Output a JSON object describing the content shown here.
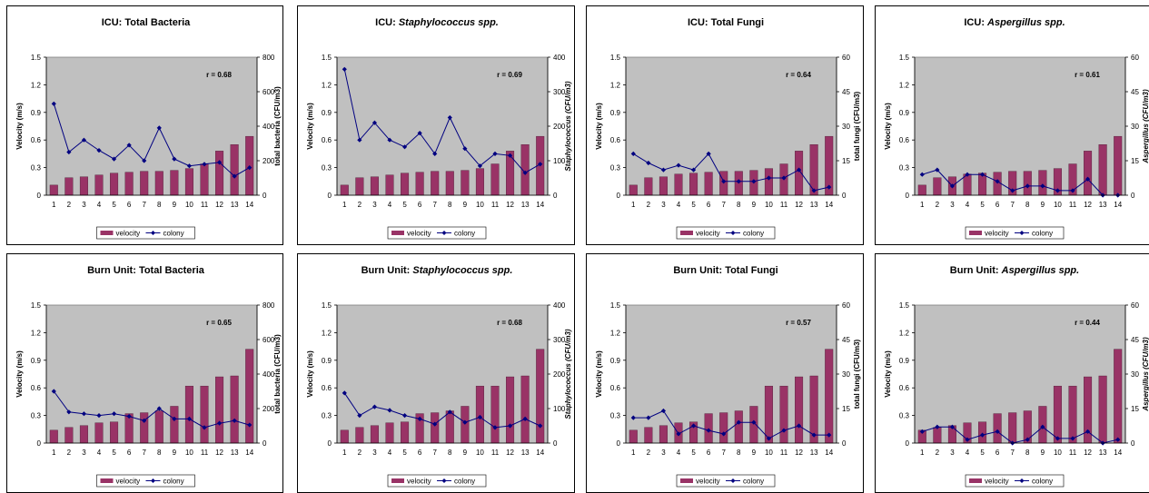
{
  "colors": {
    "plot_bg": "#c0c0c0",
    "bar": "#993366",
    "line": "#000080"
  },
  "legend": {
    "bar_label": "velocity",
    "line_label": "colony"
  },
  "chart_data": [
    {
      "type": "bar+line",
      "title_prefix": "ICU: ",
      "title_main": "Total Bacteria",
      "title_italic": false,
      "r_label": "r = 0.68",
      "ylabel_left": "Velocity (m/s)",
      "ylabel_right": "total bacteria (CFU/m3)",
      "right_label_italic": false,
      "y_left": {
        "ylim": [
          0,
          1.5
        ],
        "ticks": [
          "0",
          "0.3",
          "0.6",
          "0.9",
          "1.2",
          "1.5"
        ]
      },
      "y_right": {
        "ylim": [
          0,
          800
        ],
        "ticks": [
          "0",
          "200",
          "400",
          "600",
          "800"
        ]
      },
      "x": [
        "1",
        "2",
        "3",
        "4",
        "5",
        "6",
        "7",
        "8",
        "9",
        "10",
        "11",
        "12",
        "13",
        "14"
      ],
      "velocity": [
        0.11,
        0.19,
        0.2,
        0.22,
        0.24,
        0.25,
        0.26,
        0.26,
        0.27,
        0.29,
        0.34,
        0.48,
        0.55,
        0.64
      ],
      "colony": [
        530,
        250,
        320,
        260,
        210,
        290,
        200,
        390,
        210,
        170,
        180,
        190,
        110,
        160
      ]
    },
    {
      "type": "bar+line",
      "title_prefix": "ICU: ",
      "title_main": "Staphylococcus spp.",
      "title_italic": true,
      "r_label": "r = 0.69",
      "ylabel_left": "Velocity (m/s)",
      "ylabel_right": "Staphylococcus (CFU/m3)",
      "right_label_italic": true,
      "y_left": {
        "ylim": [
          0,
          1.5
        ],
        "ticks": [
          "0",
          "0.3",
          "0.6",
          "0.9",
          "1.2",
          "1.5"
        ]
      },
      "y_right": {
        "ylim": [
          0,
          400
        ],
        "ticks": [
          "0",
          "100",
          "200",
          "300",
          "400"
        ]
      },
      "x": [
        "1",
        "2",
        "3",
        "4",
        "5",
        "6",
        "7",
        "8",
        "9",
        "10",
        "11",
        "12",
        "13",
        "14"
      ],
      "velocity": [
        0.11,
        0.19,
        0.2,
        0.22,
        0.24,
        0.25,
        0.26,
        0.26,
        0.27,
        0.29,
        0.34,
        0.48,
        0.55,
        0.64
      ],
      "colony": [
        365,
        160,
        210,
        160,
        140,
        180,
        120,
        225,
        135,
        85,
        120,
        115,
        65,
        90
      ]
    },
    {
      "type": "bar+line",
      "title_prefix": "ICU: ",
      "title_main": "Total Fungi",
      "title_italic": false,
      "r_label": "r = 0.64",
      "ylabel_left": "Velocity (m/s)",
      "ylabel_right": "total fungi (CFU/m3)",
      "right_label_italic": false,
      "y_left": {
        "ylim": [
          0,
          1.5
        ],
        "ticks": [
          "0",
          "0.3",
          "0.6",
          "0.9",
          "1.2",
          "1.5"
        ]
      },
      "y_right": {
        "ylim": [
          0,
          60
        ],
        "ticks": [
          "0",
          "15",
          "30",
          "45",
          "60"
        ]
      },
      "x": [
        "1",
        "2",
        "3",
        "4",
        "5",
        "6",
        "7",
        "8",
        "9",
        "10",
        "11",
        "12",
        "13",
        "14"
      ],
      "velocity": [
        0.11,
        0.19,
        0.2,
        0.23,
        0.24,
        0.25,
        0.26,
        0.26,
        0.27,
        0.29,
        0.34,
        0.48,
        0.55,
        0.64
      ],
      "colony": [
        18,
        14,
        11,
        13,
        11,
        18,
        6,
        6,
        6,
        7.5,
        7.5,
        11,
        2,
        3.5
      ]
    },
    {
      "type": "bar+line",
      "title_prefix": "ICU: ",
      "title_main": "Aspergillus spp.",
      "title_italic": true,
      "r_label": "r = 0.61",
      "ylabel_left": "Velocity (m/s)",
      "ylabel_right": "Aspergillus (CFU/m3)",
      "right_label_italic": true,
      "y_left": {
        "ylim": [
          0,
          1.5
        ],
        "ticks": [
          "0",
          "0.3",
          "0.6",
          "0.9",
          "1.2",
          "1.5"
        ]
      },
      "y_right": {
        "ylim": [
          0,
          60
        ],
        "ticks": [
          "0",
          "15",
          "30",
          "45",
          "60"
        ]
      },
      "x": [
        "1",
        "2",
        "3",
        "4",
        "5",
        "6",
        "7",
        "8",
        "9",
        "10",
        "11",
        "12",
        "13",
        "14"
      ],
      "velocity": [
        0.11,
        0.19,
        0.2,
        0.23,
        0.24,
        0.25,
        0.26,
        0.26,
        0.27,
        0.29,
        0.34,
        0.48,
        0.55,
        0.64
      ],
      "colony": [
        9,
        11,
        4,
        9,
        9,
        6,
        2,
        4,
        4,
        2,
        2,
        7,
        0,
        0
      ]
    },
    {
      "type": "bar+line",
      "title_prefix": "Burn Unit: ",
      "title_main": "Total Bacteria",
      "title_italic": false,
      "r_label": "r = 0.65",
      "ylabel_left": "Velocity (m/s)",
      "ylabel_right": "total bacteria (CFU/m3)",
      "right_label_italic": false,
      "y_left": {
        "ylim": [
          0,
          1.5
        ],
        "ticks": [
          "0",
          "0.3",
          "0.6",
          "0.9",
          "1.2",
          "1.5"
        ]
      },
      "y_right": {
        "ylim": [
          0,
          800
        ],
        "ticks": [
          "0",
          "200",
          "400",
          "600",
          "800"
        ]
      },
      "x": [
        "1",
        "2",
        "3",
        "4",
        "5",
        "6",
        "7",
        "8",
        "9",
        "10",
        "11",
        "12",
        "13",
        "14"
      ],
      "velocity": [
        0.14,
        0.17,
        0.19,
        0.22,
        0.23,
        0.32,
        0.33,
        0.35,
        0.4,
        0.62,
        0.62,
        0.72,
        0.73,
        1.02
      ],
      "colony": [
        300,
        180,
        170,
        160,
        170,
        155,
        130,
        200,
        140,
        140,
        90,
        115,
        130,
        105
      ]
    },
    {
      "type": "bar+line",
      "title_prefix": "Burn Unit: ",
      "title_main": "Staphylococcus spp.",
      "title_italic": true,
      "r_label": "r = 0.68",
      "ylabel_left": "Velocity (m/s)",
      "ylabel_right": "Staphylococcus (CFU/m3)",
      "right_label_italic": true,
      "y_left": {
        "ylim": [
          0,
          1.5
        ],
        "ticks": [
          "0",
          "0.3",
          "0.6",
          "0.9",
          "1.2",
          "1.5"
        ]
      },
      "y_right": {
        "ylim": [
          0,
          400
        ],
        "ticks": [
          "0",
          "100",
          "200",
          "300",
          "400"
        ]
      },
      "x": [
        "1",
        "2",
        "3",
        "4",
        "5",
        "6",
        "7",
        "8",
        "9",
        "10",
        "11",
        "12",
        "13",
        "14"
      ],
      "velocity": [
        0.14,
        0.17,
        0.19,
        0.22,
        0.23,
        0.32,
        0.33,
        0.35,
        0.4,
        0.62,
        0.62,
        0.72,
        0.73,
        1.02
      ],
      "colony": [
        145,
        80,
        105,
        95,
        80,
        70,
        55,
        90,
        60,
        75,
        45,
        50,
        70,
        50
      ]
    },
    {
      "type": "bar+line",
      "title_prefix": "Burn Unit: ",
      "title_main": "Total Fungi",
      "title_italic": false,
      "r_label": "r = 0.57",
      "ylabel_left": "Velocity (m/s)",
      "ylabel_right": "total fungi (CFU/m3)",
      "right_label_italic": false,
      "y_left": {
        "ylim": [
          0,
          1.5
        ],
        "ticks": [
          "0",
          "0.3",
          "0.6",
          "0.9",
          "1.2",
          "1.5"
        ]
      },
      "y_right": {
        "ylim": [
          0,
          60
        ],
        "ticks": [
          "0",
          "15",
          "30",
          "45",
          "60"
        ]
      },
      "x": [
        "1",
        "2",
        "3",
        "4",
        "5",
        "6",
        "7",
        "8",
        "9",
        "10",
        "11",
        "12",
        "13",
        "14"
      ],
      "velocity": [
        0.14,
        0.17,
        0.19,
        0.22,
        0.23,
        0.32,
        0.33,
        0.35,
        0.4,
        0.62,
        0.62,
        0.72,
        0.73,
        1.02
      ],
      "colony": [
        11,
        11,
        14,
        4,
        7.5,
        5.5,
        4,
        9,
        9,
        2,
        5.5,
        7.5,
        3.5,
        3.5
      ]
    },
    {
      "type": "bar+line",
      "title_prefix": "Burn Unit: ",
      "title_main": "Aspergillus spp.",
      "title_italic": true,
      "r_label": "r = 0.44",
      "ylabel_left": "Velocity (m/s)",
      "ylabel_right": "Aspergillus (CFU/m3)",
      "right_label_italic": true,
      "y_left": {
        "ylim": [
          0,
          1.5
        ],
        "ticks": [
          "0",
          "0.3",
          "0.6",
          "0.9",
          "1.2",
          "1.5"
        ]
      },
      "y_right": {
        "ylim": [
          0,
          60
        ],
        "ticks": [
          "0",
          "15",
          "30",
          "45",
          "60"
        ]
      },
      "x": [
        "1",
        "2",
        "3",
        "4",
        "5",
        "6",
        "7",
        "8",
        "9",
        "10",
        "11",
        "12",
        "13",
        "14"
      ],
      "velocity": [
        0.14,
        0.17,
        0.19,
        0.22,
        0.23,
        0.32,
        0.33,
        0.35,
        0.4,
        0.62,
        0.62,
        0.72,
        0.73,
        1.02
      ],
      "colony": [
        5,
        7,
        7,
        1.5,
        3.5,
        5,
        0,
        1.5,
        7,
        2,
        2,
        5,
        0,
        1.5
      ]
    }
  ]
}
